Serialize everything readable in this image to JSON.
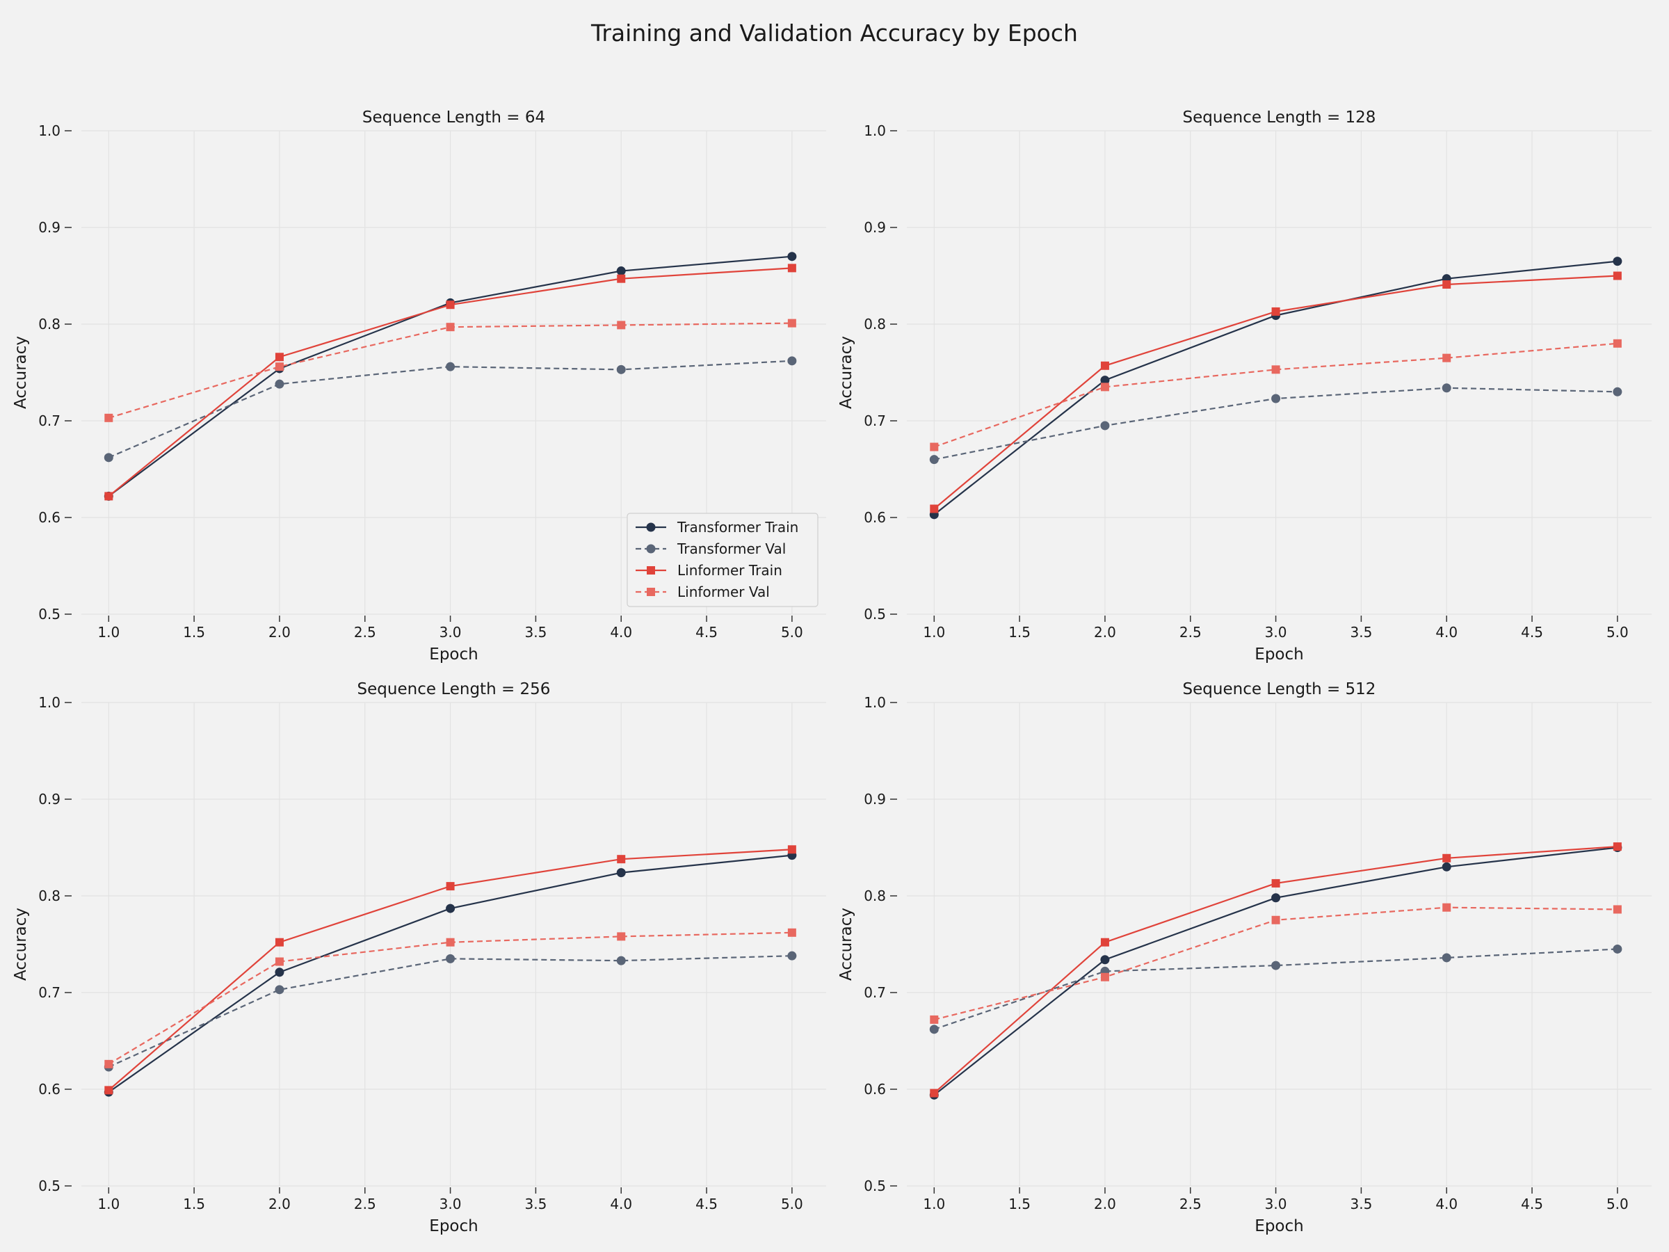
{
  "figure": {
    "title": "Training and Validation Accuracy by Epoch"
  },
  "colors": {
    "background": "#f2f2f2",
    "transformer_train": "#25334a",
    "transformer_val": "#5a6577",
    "linformer_train": "#e0433a",
    "linformer_val": "#e8685f",
    "grid": "#e2e2e2",
    "axis_text": "#1a1a1a"
  },
  "chart_data": [
    {
      "type": "line",
      "title": "Sequence Length = 64",
      "xlabel": "Epoch",
      "ylabel": "Accuracy",
      "xlim": [
        0.84,
        5.2
      ],
      "ylim": [
        0.5,
        1.0
      ],
      "xticks": [
        "1.0",
        "1.5",
        "2.0",
        "2.5",
        "3.0",
        "3.5",
        "4.0",
        "4.5",
        "5.0"
      ],
      "yticks": [
        "0.5",
        "0.6",
        "0.7",
        "0.8",
        "0.9",
        "1.0"
      ],
      "grid": true,
      "legend": "lower-right",
      "x": [
        1,
        2,
        3,
        4,
        5
      ],
      "series": [
        {
          "name": "Transformer Train",
          "values": [
            0.622,
            0.754,
            0.822,
            0.855,
            0.87
          ],
          "style": "solid",
          "marker": "circle",
          "color_key": "transformer_train"
        },
        {
          "name": "Transformer Val",
          "values": [
            0.662,
            0.738,
            0.756,
            0.753,
            0.762
          ],
          "style": "dashed",
          "marker": "circle",
          "color_key": "transformer_val"
        },
        {
          "name": "Linformer Train",
          "values": [
            0.622,
            0.766,
            0.82,
            0.847,
            0.858
          ],
          "style": "solid",
          "marker": "square",
          "color_key": "linformer_train"
        },
        {
          "name": "Linformer Val",
          "values": [
            0.703,
            0.756,
            0.797,
            0.799,
            0.801
          ],
          "style": "dashed",
          "marker": "square",
          "color_key": "linformer_val"
        }
      ]
    },
    {
      "type": "line",
      "title": "Sequence Length = 128",
      "xlabel": "Epoch",
      "ylabel": "Accuracy",
      "xlim": [
        0.84,
        5.2
      ],
      "ylim": [
        0.5,
        1.0
      ],
      "xticks": [
        "1.0",
        "1.5",
        "2.0",
        "2.5",
        "3.0",
        "3.5",
        "4.0",
        "4.5",
        "5.0"
      ],
      "yticks": [
        "0.5",
        "0.6",
        "0.7",
        "0.8",
        "0.9",
        "1.0"
      ],
      "grid": true,
      "legend": "",
      "x": [
        1,
        2,
        3,
        4,
        5
      ],
      "series": [
        {
          "name": "Transformer Train",
          "values": [
            0.603,
            0.742,
            0.809,
            0.847,
            0.865
          ],
          "style": "solid",
          "marker": "circle",
          "color_key": "transformer_train"
        },
        {
          "name": "Transformer Val",
          "values": [
            0.66,
            0.695,
            0.723,
            0.734,
            0.73
          ],
          "style": "dashed",
          "marker": "circle",
          "color_key": "transformer_val"
        },
        {
          "name": "Linformer Train",
          "values": [
            0.609,
            0.757,
            0.813,
            0.841,
            0.85
          ],
          "style": "solid",
          "marker": "square",
          "color_key": "linformer_train"
        },
        {
          "name": "Linformer Val",
          "values": [
            0.673,
            0.735,
            0.753,
            0.765,
            0.78
          ],
          "style": "dashed",
          "marker": "square",
          "color_key": "linformer_val"
        }
      ]
    },
    {
      "type": "line",
      "title": "Sequence Length = 256",
      "xlabel": "Epoch",
      "ylabel": "Accuracy",
      "xlim": [
        0.84,
        5.2
      ],
      "ylim": [
        0.5,
        1.0
      ],
      "xticks": [
        "1.0",
        "1.5",
        "2.0",
        "2.5",
        "3.0",
        "3.5",
        "4.0",
        "4.5",
        "5.0"
      ],
      "yticks": [
        "0.5",
        "0.6",
        "0.7",
        "0.8",
        "0.9",
        "1.0"
      ],
      "grid": true,
      "legend": "",
      "x": [
        1,
        2,
        3,
        4,
        5
      ],
      "series": [
        {
          "name": "Transformer Train",
          "values": [
            0.597,
            0.721,
            0.787,
            0.824,
            0.842
          ],
          "style": "solid",
          "marker": "circle",
          "color_key": "transformer_train"
        },
        {
          "name": "Transformer Val",
          "values": [
            0.623,
            0.703,
            0.735,
            0.733,
            0.738
          ],
          "style": "dashed",
          "marker": "circle",
          "color_key": "transformer_val"
        },
        {
          "name": "Linformer Train",
          "values": [
            0.599,
            0.752,
            0.81,
            0.838,
            0.848
          ],
          "style": "solid",
          "marker": "square",
          "color_key": "linformer_train"
        },
        {
          "name": "Linformer Val",
          "values": [
            0.626,
            0.732,
            0.752,
            0.758,
            0.762
          ],
          "style": "dashed",
          "marker": "square",
          "color_key": "linformer_val"
        }
      ]
    },
    {
      "type": "line",
      "title": "Sequence Length = 512",
      "xlabel": "Epoch",
      "ylabel": "Accuracy",
      "xlim": [
        0.84,
        5.2
      ],
      "ylim": [
        0.5,
        1.0
      ],
      "xticks": [
        "1.0",
        "1.5",
        "2.0",
        "2.5",
        "3.0",
        "3.5",
        "4.0",
        "4.5",
        "5.0"
      ],
      "yticks": [
        "0.5",
        "0.6",
        "0.7",
        "0.8",
        "0.9",
        "1.0"
      ],
      "grid": true,
      "legend": "",
      "x": [
        1,
        2,
        3,
        4,
        5
      ],
      "series": [
        {
          "name": "Transformer Train",
          "values": [
            0.594,
            0.734,
            0.798,
            0.83,
            0.85
          ],
          "style": "solid",
          "marker": "circle",
          "color_key": "transformer_train"
        },
        {
          "name": "Transformer Val",
          "values": [
            0.662,
            0.722,
            0.728,
            0.736,
            0.745
          ],
          "style": "dashed",
          "marker": "circle",
          "color_key": "transformer_val"
        },
        {
          "name": "Linformer Train",
          "values": [
            0.596,
            0.752,
            0.813,
            0.839,
            0.851
          ],
          "style": "solid",
          "marker": "square",
          "color_key": "linformer_train"
        },
        {
          "name": "Linformer Val",
          "values": [
            0.672,
            0.716,
            0.775,
            0.788,
            0.786
          ],
          "style": "dashed",
          "marker": "square",
          "color_key": "linformer_val"
        }
      ]
    }
  ]
}
